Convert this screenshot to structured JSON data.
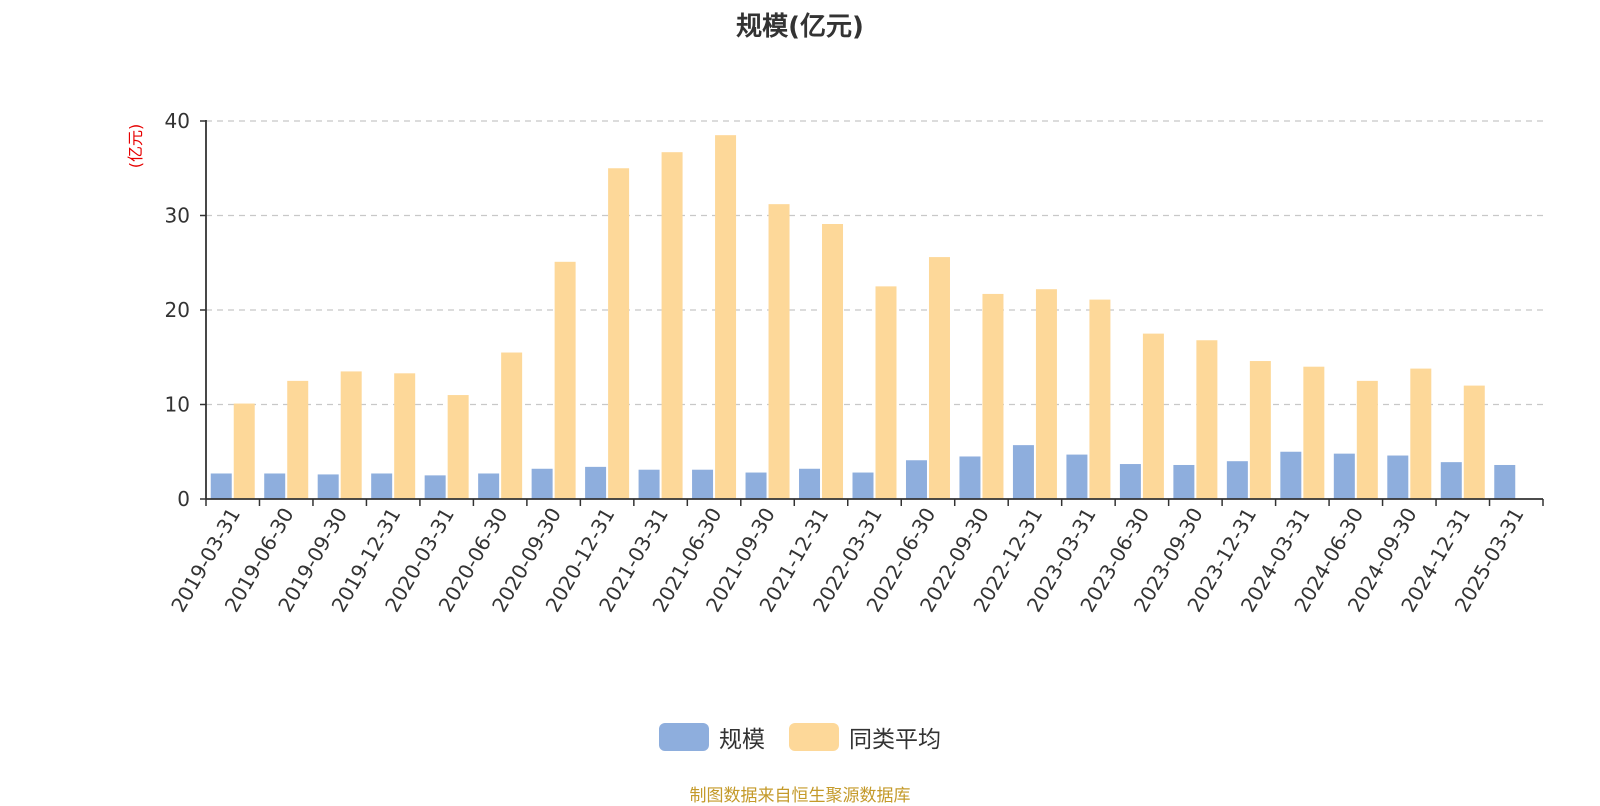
{
  "chart_data": {
    "type": "bar",
    "title": "规模(亿元)",
    "ylabel": "(亿元)",
    "xlabel": "",
    "ylim": [
      0,
      40
    ],
    "yticks": [
      0,
      10,
      20,
      30,
      40
    ],
    "grid": true,
    "legend_position": "bottom",
    "categories": [
      "2019-03-31",
      "2019-06-30",
      "2019-09-30",
      "2019-12-31",
      "2020-03-31",
      "2020-06-30",
      "2020-09-30",
      "2020-12-31",
      "2021-03-31",
      "2021-06-30",
      "2021-09-30",
      "2021-12-31",
      "2022-03-31",
      "2022-06-30",
      "2022-09-30",
      "2022-12-31",
      "2023-03-31",
      "2023-06-30",
      "2023-09-30",
      "2023-12-31",
      "2024-03-31",
      "2024-06-30",
      "2024-09-30",
      "2024-12-31",
      "2025-03-31"
    ],
    "series": [
      {
        "name": "规模",
        "color": "#8eaedd",
        "values": [
          2.7,
          2.7,
          2.6,
          2.7,
          2.5,
          2.7,
          3.2,
          3.4,
          3.1,
          3.1,
          2.8,
          3.2,
          2.8,
          4.1,
          4.5,
          5.7,
          4.7,
          3.7,
          3.6,
          4.0,
          5.0,
          4.8,
          4.6,
          3.9,
          3.6
        ]
      },
      {
        "name": "同类平均",
        "color": "#fdd899",
        "values": [
          10.1,
          12.5,
          13.5,
          13.3,
          11.0,
          15.5,
          25.1,
          35.0,
          36.7,
          38.5,
          31.2,
          29.1,
          22.5,
          25.6,
          21.7,
          22.2,
          21.1,
          17.5,
          16.8,
          14.6,
          14.0,
          12.5,
          13.8,
          12.0,
          null
        ]
      }
    ]
  },
  "legend": {
    "items": [
      {
        "label": "规模",
        "color": "#8eaedd"
      },
      {
        "label": "同类平均",
        "color": "#fdd899"
      }
    ]
  },
  "footer": {
    "source": "制图数据来自恒生聚源数据库"
  }
}
